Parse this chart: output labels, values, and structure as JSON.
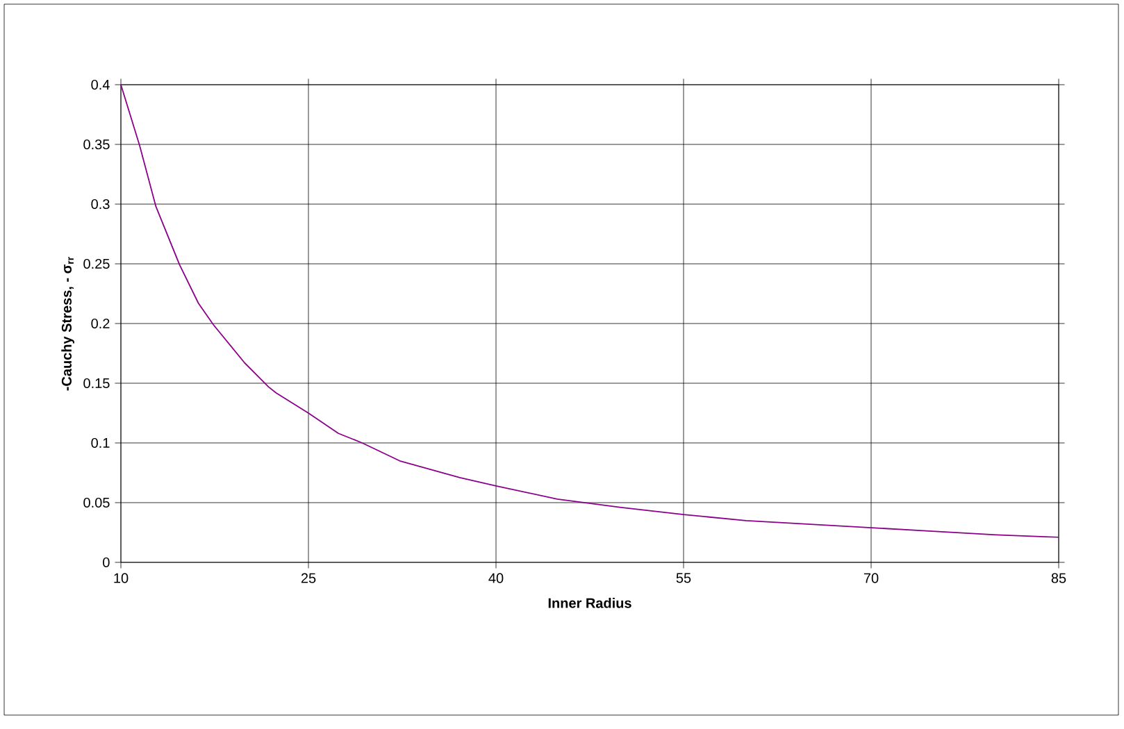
{
  "chart_data": {
    "type": "line",
    "xlabel": "Inner Radius",
    "ylabel": "-Cauchy Stress, - σ$_{rr}$",
    "xlim": [
      10,
      85
    ],
    "ylim": [
      0,
      0.4
    ],
    "xticks": [
      10,
      25,
      40,
      55,
      70,
      85
    ],
    "yticks": [
      0,
      0.05,
      0.1,
      0.15,
      0.2,
      0.25,
      0.3,
      0.35,
      0.4
    ],
    "grid": true,
    "marker": "none",
    "line_style": "solid",
    "series": [
      {
        "color": "#8b008b",
        "x": [
          10,
          11.5,
          12.8,
          14.7,
          16.2,
          17.4,
          19.9,
          21.8,
          22.4,
          25,
          27.4,
          29.3,
          32.3,
          37.1,
          40,
          44.9,
          50,
          55,
          60,
          65,
          70,
          80,
          85
        ],
        "values": [
          0.4,
          0.349,
          0.298,
          0.249,
          0.217,
          0.199,
          0.167,
          0.147,
          0.142,
          0.125,
          0.108,
          0.1,
          0.085,
          0.071,
          0.064,
          0.053,
          0.046,
          0.04,
          0.035,
          0.032,
          0.029,
          0.023,
          0.021
        ]
      }
    ]
  }
}
